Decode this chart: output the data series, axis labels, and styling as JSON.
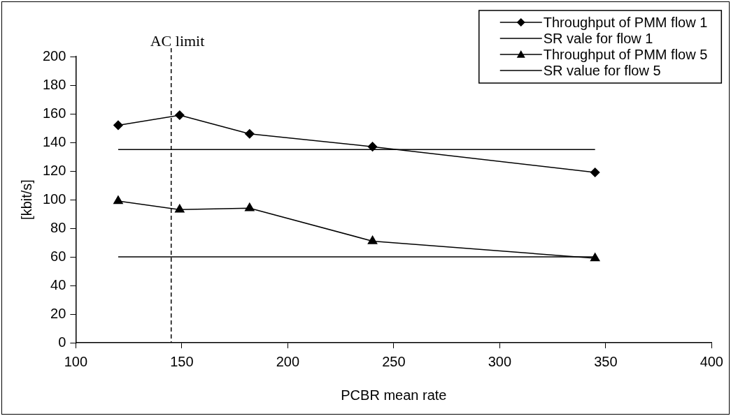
{
  "chart_data": {
    "type": "line",
    "xlabel": "PCBR mean rate",
    "ylabel": "[kbit/s]",
    "xlim": [
      100,
      400
    ],
    "xticks": [
      100,
      150,
      200,
      250,
      300,
      350,
      400
    ],
    "ylim": [
      0,
      200
    ],
    "yticks": [
      0,
      20,
      40,
      60,
      80,
      100,
      120,
      140,
      160,
      180,
      200
    ],
    "grid": false,
    "legend": "top right",
    "line_style": "solid",
    "series": [
      {
        "name": "Throughput of PMM flow 1",
        "color": "#000000",
        "marker": "diamond",
        "x": [
          120,
          149,
          182,
          240,
          345
        ],
        "values": [
          152,
          159,
          146,
          137,
          119
        ]
      },
      {
        "name": "SR vale for flow 1",
        "color": "#000000",
        "marker": "none",
        "x": [
          120,
          345
        ],
        "values": [
          135,
          135
        ]
      },
      {
        "name": "Throughput of PMM flow 5",
        "color": "#000000",
        "marker": "triangle",
        "x": [
          120,
          149,
          182,
          240,
          345
        ],
        "values": [
          99,
          93,
          94,
          71,
          59
        ]
      },
      {
        "name": "SR value for flow 5",
        "color": "#000000",
        "marker": "none",
        "x": [
          120,
          345
        ],
        "values": [
          60,
          60
        ]
      }
    ],
    "ref_lines": [
      {
        "axis": "x",
        "value": 145,
        "label": "AC limit",
        "color": "#000000",
        "line_style": "dashed"
      }
    ]
  }
}
